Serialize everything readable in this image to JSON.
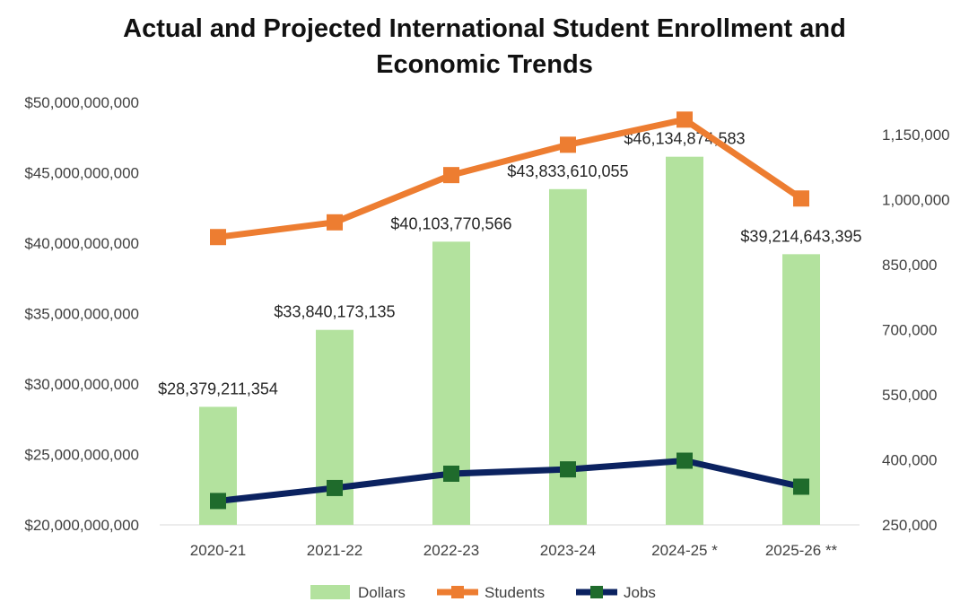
{
  "chart_data": {
    "type": "bar",
    "title_lines": [
      "Actual and Projected International Student Enrollment and",
      "Economic Trends"
    ],
    "categories": [
      "2020-21",
      "2021-22",
      "2022-23",
      "2023-24",
      "2024-25 *",
      "2025-26 **"
    ],
    "left_axis": {
      "min": 20000000000,
      "max": 50000000000,
      "step": 5000000000,
      "tick_labels": [
        "$20,000,000,000",
        "$25,000,000,000",
        "$30,000,000,000",
        "$35,000,000,000",
        "$40,000,000,000",
        "$45,000,000,000",
        "$50,000,000,000"
      ]
    },
    "right_axis": {
      "min": 250000,
      "max": 1225000,
      "ticks": [
        250000,
        400000,
        550000,
        700000,
        850000,
        1000000,
        1150000
      ],
      "tick_labels": [
        "250,000",
        "400,000",
        "550,000",
        "700,000",
        "850,000",
        "1,000,000",
        "1,150,000"
      ]
    },
    "series": [
      {
        "name": "Dollars",
        "type": "bar",
        "axis": "left",
        "color": "#b3e29e",
        "values": [
          28379211354,
          33840173135,
          40103770566,
          43833610055,
          46134874583,
          39214643395
        ],
        "labels": [
          "$28,379,211,354",
          "$33,840,173,135",
          "$40,103,770,566",
          "$43,833,610,055",
          "$46,134,874,583",
          "$39,214,643,395"
        ]
      },
      {
        "name": "Students",
        "type": "line",
        "axis": "right",
        "color": "#ed7d31",
        "values": [
          914000,
          948000,
          1057000,
          1127000,
          1185000,
          1003000
        ]
      },
      {
        "name": "Jobs",
        "type": "line",
        "axis": "right",
        "color": "#0b2260",
        "marker_color": "#1f6b2c",
        "values": [
          305000,
          335000,
          368000,
          378000,
          398000,
          338000
        ]
      }
    ],
    "grid": false,
    "legend_position": "bottom"
  }
}
